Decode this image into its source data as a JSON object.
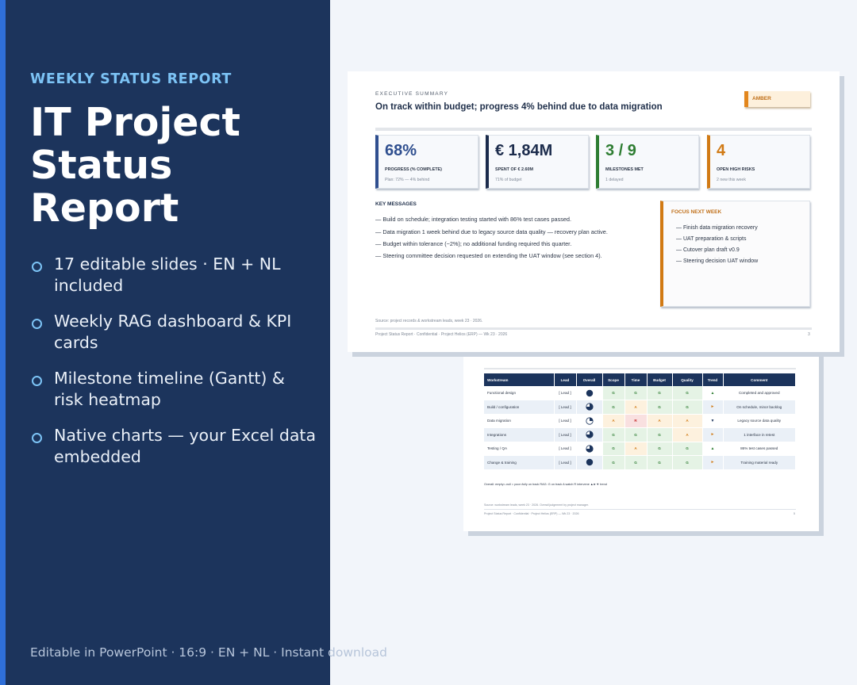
{
  "hero": {
    "kicker": "WEEKLY STATUS REPORT",
    "title": "IT Project Status Report",
    "features": [
      "17 editable slides · EN + NL included",
      "Weekly RAG dashboard & KPI cards",
      "Milestone timeline (Gantt) & risk heatmap",
      "Native charts — your Excel data embedded"
    ],
    "footer": "Editable in PowerPoint · 16:9 · EN + NL · Instant download"
  },
  "colors": {
    "navy": "#1c345c",
    "accent_blue": "#2f6fd9",
    "kicker_blue": "#7cc3f5",
    "amber": "#e2861d",
    "green": "#2e7d32"
  },
  "front_slide": {
    "section_label": "EXECUTIVE SUMMARY",
    "headline": "On track within budget; progress 4% behind due to data migration",
    "status_badge": "AMBER",
    "kpis": [
      {
        "value": "68%",
        "label": "PROGRESS (% COMPLETE)",
        "sub": "Plan: 72% — 4% behind",
        "color": "#2f4f8f"
      },
      {
        "value": "€ 1,84M",
        "label": "SPENT OF € 2.60M",
        "sub": "71% of budget",
        "color": "#1c2c4c"
      },
      {
        "value": "3 / 9",
        "label": "MILESTONES MET",
        "sub": "1 delayed",
        "color": "#2e7d32"
      },
      {
        "value": "4",
        "label": "OPEN HIGH RISKS",
        "sub": "2 new this week",
        "color": "#d17a14"
      }
    ],
    "key_messages_label": "KEY MESSAGES",
    "key_messages": [
      "— Build on schedule; integration testing started with 86% test cases passed.",
      "— Data migration 1 week behind due to legacy source data quality — recovery plan active.",
      "— Budget within tolerance (−2%); no additional funding required this quarter.",
      "— Steering committee decision requested on extending the UAT window (see section 4)."
    ],
    "focus": {
      "title": "FOCUS NEXT WEEK",
      "items": [
        "— Finish data migration recovery",
        "— UAT preparation & scripts",
        "— Cutover plan draft v0.9",
        "— Steering decision UAT window"
      ]
    },
    "source": "Source: project records & workstream leads, week 23 · 2026.",
    "footer": "Project Status Report  ·  Confidential  ·  Project Helios (ERP)  —  Wk 23 · 2026",
    "page": "3"
  },
  "back_slide": {
    "columns": [
      "Workstream",
      "Lead",
      "Overall",
      "Scope",
      "Time",
      "Budget",
      "Quality",
      "Trend",
      "Comment"
    ],
    "rows": [
      {
        "workstream": "Functional design",
        "lead": "[ Lead ]",
        "overall": "full",
        "scope": "G",
        "time": "G",
        "budget": "G",
        "quality": "G",
        "trend": "▲",
        "trend_kind": "up",
        "comment": "Completed and approved"
      },
      {
        "workstream": "Build / configuration",
        "lead": "[ Lead ]",
        "overall": "three-quarter",
        "scope": "G",
        "time": "A",
        "budget": "G",
        "quality": "G",
        "trend": "►",
        "trend_kind": "flat",
        "comment": "On schedule, minor backlog"
      },
      {
        "workstream": "Data migration",
        "lead": "[ Lead ]",
        "overall": "quarter",
        "scope": "A",
        "time": "R",
        "budget": "A",
        "quality": "A",
        "trend": "▼",
        "trend_kind": "down",
        "comment": "Legacy source data quality"
      },
      {
        "workstream": "Integrations",
        "lead": "[ Lead ]",
        "overall": "three-quarter",
        "scope": "G",
        "time": "G",
        "budget": "G",
        "quality": "A",
        "trend": "►",
        "trend_kind": "flat",
        "comment": "1 interface in retest"
      },
      {
        "workstream": "Testing / QA",
        "lead": "[ Lead ]",
        "overall": "three-quarter",
        "scope": "G",
        "time": "A",
        "budget": "G",
        "quality": "G",
        "trend": "▲",
        "trend_kind": "up",
        "comment": "86% test cases passed"
      },
      {
        "workstream": "Change & training",
        "lead": "[ Lead ]",
        "overall": "full",
        "scope": "G",
        "time": "G",
        "budget": "G",
        "quality": "G",
        "trend": "►",
        "trend_kind": "flat",
        "comment": "Training material ready"
      }
    ],
    "legend": "Overall: empty=-null = poor=fully on track    RAG: G on track  A watch  R intervene  ▲►▼ trend",
    "source": "Source: workstream leads, week 23 · 2026. Overall judgement by project manager.",
    "footer": "Project Status Report  ·  Confidential  ·  Project Helios (ERP)  —  Wk 23 · 2026",
    "page": "5"
  }
}
